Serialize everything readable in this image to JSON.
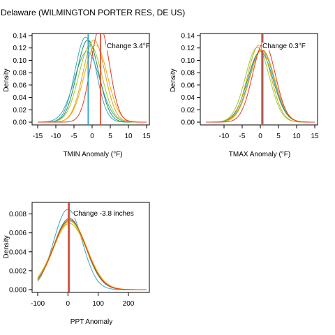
{
  "title": "Delaware (WILMINGTON PORTER RES, DE US)",
  "chart_data": [
    {
      "type": "line",
      "id": "tmin",
      "xlabel": "TMIN Anomaly (°F)",
      "ylabel": "Density",
      "annotation": "Change 3.4°F",
      "xlim": [
        -15,
        15
      ],
      "ylim": [
        0,
        0.14
      ],
      "x_ticks": [
        -15,
        -10,
        -5,
        0,
        5,
        10,
        15
      ],
      "y_ticks": [
        0.0,
        0.02,
        0.04,
        0.06,
        0.08,
        0.1,
        0.12,
        0.14
      ],
      "y_tick_labels": [
        "0.00",
        "0.02",
        "0.04",
        "0.06",
        "0.08",
        "0.10",
        "0.12",
        "0.14"
      ],
      "curves": [
        {
          "color": "#3aa6c2",
          "mean": -1.4,
          "sd": 3.5
        },
        {
          "color": "#3aa6c2",
          "mean": -1.8,
          "sd": 2.9
        },
        {
          "color": "#2e8b57",
          "mean": -1.2,
          "sd": 3.0
        },
        {
          "color": "#9acd32",
          "mean": -0.5,
          "sd": 3.2
        },
        {
          "color": "#daa520",
          "mean": 0.5,
          "sd": 3.0
        },
        {
          "color": "#ffa500",
          "mean": 1.0,
          "sd": 3.2
        },
        {
          "color": "#e03c1f",
          "mean": 2.2,
          "sd": 2.6
        }
      ],
      "baseline_mean": -1.1,
      "current_mean": 2.3,
      "baseline_color": "#1f9fd0",
      "current_color": "#e03c1f"
    },
    {
      "type": "line",
      "id": "tmax",
      "xlabel": "TMAX Anomaly (°F)",
      "ylabel": "Density",
      "annotation": "Change 0.3°F",
      "xlim": [
        -15,
        15
      ],
      "ylim": [
        0,
        0.14
      ],
      "x_ticks": [
        -10,
        -5,
        0,
        5,
        10,
        15
      ],
      "y_ticks": [
        0.0,
        0.02,
        0.04,
        0.06,
        0.08,
        0.1,
        0.12,
        0.14
      ],
      "y_tick_labels": [
        "0.00",
        "0.02",
        "0.04",
        "0.06",
        "0.08",
        "0.10",
        "0.12",
        "0.14"
      ],
      "curves": [
        {
          "color": "#3aa6c2",
          "mean": 0.3,
          "sd": 3.4
        },
        {
          "color": "#2e8b57",
          "mean": 0.0,
          "sd": 3.5
        },
        {
          "color": "#9acd32",
          "mean": -0.8,
          "sd": 3.3
        },
        {
          "color": "#daa520",
          "mean": -0.3,
          "sd": 3.2
        },
        {
          "color": "#ffa500",
          "mean": 0.5,
          "sd": 3.4
        },
        {
          "color": "#e03c1f",
          "mean": 1.0,
          "sd": 3.1
        }
      ],
      "baseline_mean": 0.4,
      "current_mean": 0.7,
      "baseline_color": "#1f9fd0",
      "current_color": "#e03c1f"
    },
    {
      "type": "line",
      "id": "ppt",
      "xlabel": "PPT Anomaly",
      "ylabel": "Density",
      "annotation": "Change -3.8 inches",
      "xlim": [
        -100,
        260
      ],
      "ylim": [
        0,
        0.009
      ],
      "x_ticks": [
        -100,
        0,
        100,
        200
      ],
      "y_ticks": [
        0.0,
        0.002,
        0.004,
        0.006,
        0.008
      ],
      "y_tick_labels": [
        "0.000",
        "0.002",
        "0.004",
        "0.006",
        "0.008"
      ],
      "curves": [
        {
          "color": "#3aa6c2",
          "mean": 0,
          "sd": 47
        },
        {
          "color": "#2e8b57",
          "mean": 5,
          "sd": 53
        },
        {
          "color": "#9acd32",
          "mean": 5,
          "sd": 55
        },
        {
          "color": "#daa520",
          "mean": 5,
          "sd": 57
        },
        {
          "color": "#ffa500",
          "mean": 8,
          "sd": 55
        },
        {
          "color": "#e03c1f",
          "mean": 6,
          "sd": 54
        }
      ],
      "baseline_mean": 5,
      "current_mean": 1.2,
      "baseline_color": "#1f9fd0",
      "current_color": "#e03c1f"
    }
  ]
}
